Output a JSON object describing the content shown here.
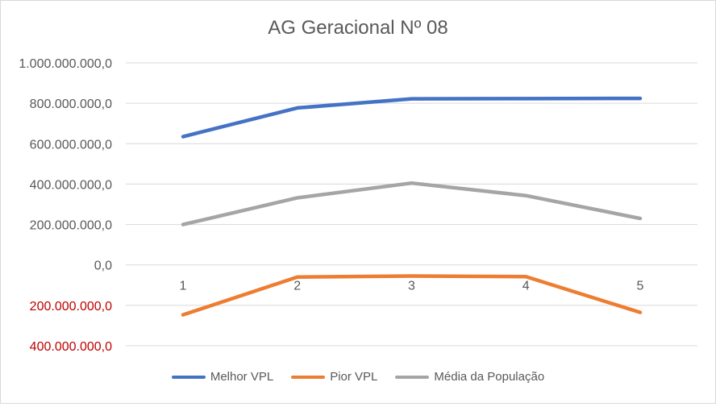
{
  "chart_data": {
    "type": "line",
    "title": "AG Geracional Nº 08",
    "categories": [
      "1",
      "2",
      "3",
      "4",
      "5"
    ],
    "ylim": [
      -400000000,
      1000000000
    ],
    "yticks": [
      {
        "value": 1000000000,
        "label": "1.000.000.000,0",
        "color": "#595959"
      },
      {
        "value": 800000000,
        "label": "800.000.000,0",
        "color": "#595959"
      },
      {
        "value": 600000000,
        "label": "600.000.000,0",
        "color": "#595959"
      },
      {
        "value": 400000000,
        "label": "400.000.000,0",
        "color": "#595959"
      },
      {
        "value": 200000000,
        "label": "200.000.000,0",
        "color": "#595959"
      },
      {
        "value": 0,
        "label": "0,0",
        "color": "#595959"
      },
      {
        "value": -200000000,
        "label": "200.000.000,0",
        "color": "#c00000"
      },
      {
        "value": -400000000,
        "label": "400.000.000,0",
        "color": "#c00000"
      }
    ],
    "grid": true,
    "legend_position": "bottom",
    "series": [
      {
        "name": "Melhor VPL",
        "color": "#4472c4",
        "values": [
          635000000,
          777000000,
          822000000,
          823000000,
          824000000
        ]
      },
      {
        "name": "Pior VPL",
        "color": "#ed7d31",
        "values": [
          -247000000,
          -60000000,
          -55000000,
          -58000000,
          -235000000
        ]
      },
      {
        "name": "Média da População",
        "color": "#a5a5a5",
        "values": [
          200000000,
          332000000,
          405000000,
          343000000,
          230000000
        ]
      }
    ]
  }
}
